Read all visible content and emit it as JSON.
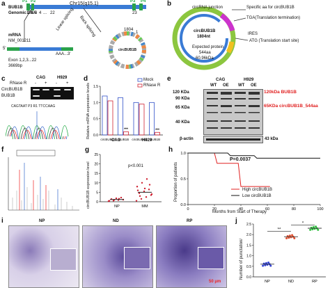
{
  "panel_labels": [
    "a",
    "b",
    "c",
    "d",
    "e",
    "f",
    "g",
    "h",
    "i",
    "j"
  ],
  "a": {
    "gene": "BUB1B",
    "genomic_dna": "Genomic DNA",
    "locus": "Chr15(q15.1)",
    "primers": [
      "P1",
      "P2",
      "P3",
      "P4"
    ],
    "exon_marks": [
      "1",
      "2",
      "3",
      "4",
      "...",
      "22",
      "23"
    ],
    "circle_nt": "1804",
    "circle_start": "1",
    "circle_center": "circBUB1B",
    "mrna": "mRNA",
    "mrna_id": "NM_001211",
    "exons": "Exon 1,2,3...22",
    "length": "3669bp",
    "tail": "AAA...3'",
    "five_prime": "5'",
    "linear": "Linear splicing",
    "back": "Back splicing"
  },
  "b": {
    "junction": "circRNA junction",
    "specific": "Specific aa for circBUB1B",
    "tga": "TGA(Translation termination)",
    "name": "circBUB1B",
    "nt": "1804nt",
    "ires": "IRES",
    "atg": "ATG (Translation start site)",
    "protein": "Expected protein",
    "aa": "544aa",
    "kda": "60.96kDa"
  },
  "c": {
    "cols": [
      "CAG",
      "H929"
    ],
    "rnase": "RNase R",
    "signs": [
      "-",
      "+",
      "-",
      "+"
    ],
    "rows": [
      "CircBUB1B",
      "BUB1B"
    ],
    "seq": "CAGTAAT P3 R1 TTCCAAG"
  },
  "d": {
    "ylabel": "Relative mRNA expression levels",
    "legend": [
      "Mock",
      "RNase R"
    ],
    "ticks": [
      "0.0",
      "0.5",
      "1.0",
      "1.5"
    ],
    "groups": [
      "CAG",
      "H929"
    ],
    "xcats": [
      "circBUB1B",
      "BUB1B",
      "circBUB1B",
      "BUB1B"
    ],
    "sig": "***"
  },
  "e": {
    "cols": [
      "CAG",
      "H929"
    ],
    "lanes": [
      "WT",
      "OE",
      "WT",
      "OE"
    ],
    "markers": [
      "120 KDa",
      "90 KDa",
      "65 KDa",
      "40 KDa"
    ],
    "ann1": "120kDa BUB1B",
    "ann2": "65KDa circBUB1B_544aa",
    "actin": "β-actin",
    "actin_kda": "43 kDa"
  },
  "g": {
    "ylabel": "circBUB1B expression level",
    "pval": "p<0.001",
    "ticks": [
      "0",
      "5",
      "10",
      "15",
      "20",
      "25"
    ],
    "cats": [
      "NP",
      "MM"
    ]
  },
  "h": {
    "ylabel": "Proportion of patients",
    "pval": "P=0.0037",
    "xlabel": "Months from Start of Therapy",
    "legend": [
      "High circBUB1B",
      "Low circBUB1B"
    ],
    "yticks": [
      "0.0",
      "0.5",
      "1.0"
    ],
    "xticks": [
      "0",
      "20",
      "40",
      "60",
      "80",
      "100"
    ]
  },
  "i": {
    "labels": [
      "NP",
      "ND",
      "RP"
    ],
    "scale": "50 μm"
  },
  "j": {
    "ylabel": "Number of punctation/",
    "ticks": [
      "0.0",
      "0.5",
      "1.0",
      "1.5",
      "2.0",
      "2.5"
    ],
    "cats": [
      "NP",
      "ND",
      "RP"
    ],
    "sig": [
      "**",
      "*"
    ]
  },
  "chart_data": [
    {
      "type": "bar",
      "panel": "d",
      "ylabel": "Relative mRNA expression levels",
      "ylim": [
        0,
        1.5
      ],
      "categories": [
        "CAG circBUB1B",
        "CAG BUB1B",
        "H929 circBUB1B",
        "H929 BUB1B"
      ],
      "series": [
        {
          "name": "Mock",
          "values": [
            1.2,
            1.15,
            1.0,
            1.0
          ]
        },
        {
          "name": "RNase R",
          "values": [
            1.05,
            0.1,
            0.95,
            0.08
          ]
        }
      ]
    },
    {
      "type": "scatter",
      "panel": "g",
      "ylabel": "circBUB1B expression level",
      "ylim": [
        0,
        25
      ],
      "categories": [
        "NP",
        "MM"
      ],
      "series": [
        {
          "name": "NP",
          "mean": 1.2
        },
        {
          "name": "MM",
          "mean": 5.0
        }
      ]
    },
    {
      "type": "line",
      "panel": "h",
      "xlabel": "Months from Start of Therapy",
      "ylabel": "Proportion of patients",
      "xlim": [
        0,
        100
      ],
      "ylim": [
        0,
        1.0
      ],
      "series": [
        {
          "name": "High circBUB1B",
          "x": [
            0,
            20,
            22,
            38,
            40,
            62
          ],
          "y": [
            1.0,
            1.0,
            0.8,
            0.8,
            0.35,
            0.35
          ]
        },
        {
          "name": "Low circBUB1B",
          "x": [
            0,
            30,
            32,
            50,
            52,
            100
          ],
          "y": [
            1.0,
            1.0,
            0.95,
            0.95,
            0.9,
            0.9
          ]
        }
      ]
    },
    {
      "type": "bar",
      "panel": "j",
      "ylabel": "Number of punctation/",
      "ylim": [
        0,
        2.5
      ],
      "categories": [
        "NP",
        "ND",
        "RP"
      ],
      "values": [
        0.6,
        1.9,
        2.3
      ]
    }
  ]
}
